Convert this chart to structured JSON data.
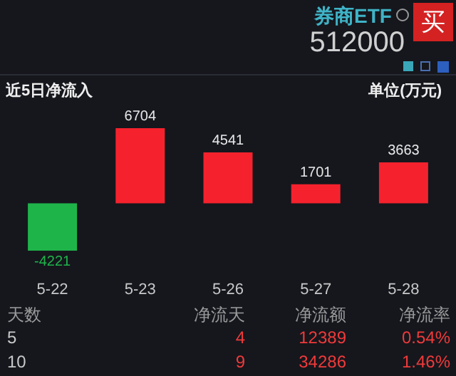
{
  "chart_data": {
    "type": "bar",
    "title": "近5日净流入",
    "subtitle": "单位(万元)",
    "categories": [
      "5-22",
      "5-23",
      "5-26",
      "5-27",
      "5-28"
    ],
    "values": [
      -4221,
      6704,
      4541,
      1701,
      3663
    ],
    "colors": [
      "#1fb44a",
      "#f5222d",
      "#f5222d",
      "#f5222d",
      "#f5222d"
    ],
    "data_labels": true,
    "annotations": [
      "券商ETF",
      "512000",
      "买",
      "天数",
      "净流天",
      "净流额",
      "净流率",
      "5",
      "4",
      "12389",
      "0.54%",
      "10",
      "9",
      "34286",
      "1.46%"
    ]
  }
}
